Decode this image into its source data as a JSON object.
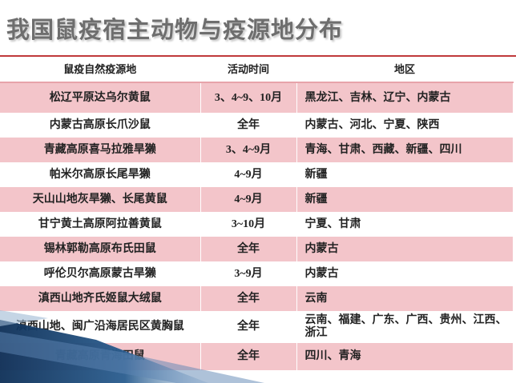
{
  "title": "我国鼠疫宿主动物与疫源地分布",
  "table": {
    "header": [
      "鼠疫自然疫源地",
      "活动时间",
      "地区"
    ],
    "rows": [
      [
        "松辽平原达乌尔黄鼠",
        "3、4~9、10月",
        "黑龙江、吉林、辽宁、内蒙古"
      ],
      [
        "内蒙古高原长爪沙鼠",
        "全年",
        "内蒙古、河北、宁夏、陕西"
      ],
      [
        "青藏高原喜马拉雅旱獭",
        "3、4~9月",
        "青海、甘肃、西藏、新疆、四川"
      ],
      [
        "帕米尔高原长尾旱獭",
        "4~9月",
        "新疆"
      ],
      [
        "天山山地灰旱獭、长尾黄鼠",
        "4~9月",
        "新疆"
      ],
      [
        "甘宁黄土高原阿拉善黄鼠",
        "3~10月",
        "宁夏、甘肃"
      ],
      [
        "锡林郭勒高原布氏田鼠",
        "全年",
        "内蒙古"
      ],
      [
        "呼伦贝尔高原蒙古旱獭",
        "3~9月",
        "内蒙古"
      ],
      [
        "滇西山地齐氏姬鼠大绒鼠",
        "全年",
        "云南"
      ],
      [
        "滇西山地、闽广沿海居民区黄胸鼠",
        "全年",
        "云南、福建、广东、广西、贵州、江西、浙江"
      ],
      [
        "青藏高原青海田鼠",
        "全年",
        "四川、青海"
      ]
    ]
  }
}
